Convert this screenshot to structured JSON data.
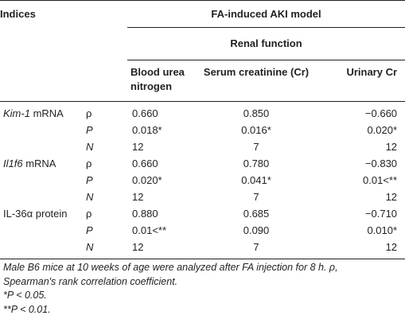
{
  "header": {
    "indices": "Indices",
    "model": "FA-induced AKI model",
    "renal_function": "Renal function",
    "columns": [
      "Blood urea nitrogen",
      "Serum creatinine (Cr)",
      "Urinary Cr"
    ]
  },
  "groups": [
    {
      "name_italic": "Kim-1",
      "name_rest": " mRNA",
      "rows": [
        {
          "symbol": "ρ",
          "values": [
            "0.660",
            "0.850",
            "−0.660"
          ]
        },
        {
          "symbol": "P",
          "values": [
            "0.018*",
            "0.016*",
            "0.020*"
          ]
        },
        {
          "symbol": "N",
          "values": [
            "12",
            "7",
            "12"
          ]
        }
      ]
    },
    {
      "name_italic": "Il1f6",
      "name_rest": " mRNA",
      "rows": [
        {
          "symbol": "ρ",
          "values": [
            "0.660",
            "0.780",
            "−0.830"
          ]
        },
        {
          "symbol": "P",
          "values": [
            "0.020*",
            "0.041*",
            "0.01<**"
          ]
        },
        {
          "symbol": "N",
          "values": [
            "12",
            "7",
            "12"
          ]
        }
      ]
    },
    {
      "name_italic": "",
      "name_rest": "IL-36α protein",
      "rows": [
        {
          "symbol": "ρ",
          "values": [
            "0.880",
            "0.685",
            "−0.710"
          ]
        },
        {
          "symbol": "P",
          "values": [
            "0.01<**",
            "0.090",
            "0.010*"
          ]
        },
        {
          "symbol": "N",
          "values": [
            "12",
            "7",
            "12"
          ]
        }
      ]
    }
  ],
  "footnotes": {
    "line1": "Male B6 mice at 10 weeks of age were analyzed after FA injection for 8 h. ρ,",
    "line2": "Spearman's rank correlation coefficient.",
    "line3": "*P < 0.05.",
    "line4": "**P < 0.01."
  }
}
